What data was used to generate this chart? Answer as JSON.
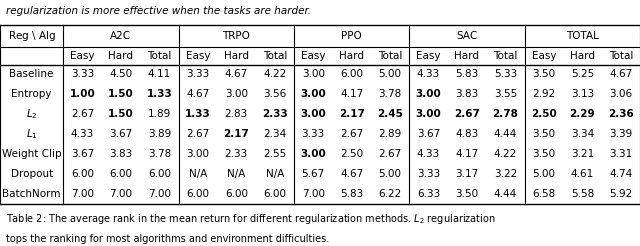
{
  "title_text": "regularization is more effective when the tasks are harder.",
  "col_groups": [
    "A2C",
    "TRPO",
    "PPO",
    "SAC",
    "TOTAL"
  ],
  "sub_cols": [
    "Easy",
    "Hard",
    "Total"
  ],
  "row_labels": [
    "Baseline",
    "Entropy",
    "$L_2$",
    "$L_1$",
    "Weight Clip",
    "Dropout",
    "BatchNorm"
  ],
  "data": [
    [
      "3.33",
      "4.50",
      "4.11",
      "3.33",
      "4.67",
      "4.22",
      "3.00",
      "6.00",
      "5.00",
      "4.33",
      "5.83",
      "5.33",
      "3.50",
      "5.25",
      "4.67"
    ],
    [
      "1.00",
      "1.50",
      "1.33",
      "4.67",
      "3.00",
      "3.56",
      "3.00",
      "4.17",
      "3.78",
      "3.00",
      "3.83",
      "3.55",
      "2.92",
      "3.13",
      "3.06"
    ],
    [
      "2.67",
      "1.50",
      "1.89",
      "1.33",
      "2.83",
      "2.33",
      "3.00",
      "2.17",
      "2.45",
      "3.00",
      "2.67",
      "2.78",
      "2.50",
      "2.29",
      "2.36"
    ],
    [
      "4.33",
      "3.67",
      "3.89",
      "2.67",
      "2.17",
      "2.34",
      "3.33",
      "2.67",
      "2.89",
      "3.67",
      "4.83",
      "4.44",
      "3.50",
      "3.34",
      "3.39"
    ],
    [
      "3.67",
      "3.83",
      "3.78",
      "3.00",
      "2.33",
      "2.55",
      "3.00",
      "2.50",
      "2.67",
      "4.33",
      "4.17",
      "4.22",
      "3.50",
      "3.21",
      "3.31"
    ],
    [
      "6.00",
      "6.00",
      "6.00",
      "N/A",
      "N/A",
      "N/A",
      "5.67",
      "4.67",
      "5.00",
      "3.33",
      "3.17",
      "3.22",
      "5.00",
      "4.61",
      "4.74"
    ],
    [
      "7.00",
      "7.00",
      "7.00",
      "6.00",
      "6.00",
      "6.00",
      "7.00",
      "5.83",
      "6.22",
      "6.33",
      "3.50",
      "4.44",
      "6.58",
      "5.58",
      "5.92"
    ]
  ],
  "bold": [
    [
      0,
      0,
      0,
      0,
      0,
      0,
      0,
      0,
      0,
      0,
      0,
      0,
      0,
      0,
      0
    ],
    [
      1,
      1,
      1,
      0,
      0,
      0,
      1,
      0,
      0,
      1,
      0,
      0,
      0,
      0,
      0
    ],
    [
      0,
      1,
      0,
      1,
      0,
      1,
      1,
      1,
      1,
      1,
      1,
      1,
      1,
      1,
      1
    ],
    [
      0,
      0,
      0,
      0,
      1,
      0,
      0,
      0,
      0,
      0,
      0,
      0,
      0,
      0,
      0
    ],
    [
      0,
      0,
      0,
      0,
      0,
      0,
      1,
      0,
      0,
      0,
      0,
      0,
      0,
      0,
      0
    ],
    [
      0,
      0,
      0,
      0,
      0,
      0,
      0,
      0,
      0,
      0,
      0,
      0,
      0,
      0,
      0
    ],
    [
      0,
      0,
      0,
      0,
      0,
      0,
      0,
      0,
      0,
      0,
      0,
      0,
      0,
      0,
      0
    ]
  ],
  "caption_main": "Table 2: The average rank in the mean return for different regularization methods. ",
  "caption_italic": "$L_2$",
  "caption_end": " regularization",
  "caption_line2": "tops the ranking for most algorithms and environment difficulties.",
  "background_color": "#ffffff",
  "figsize": [
    6.4,
    2.46
  ],
  "dpi": 100
}
